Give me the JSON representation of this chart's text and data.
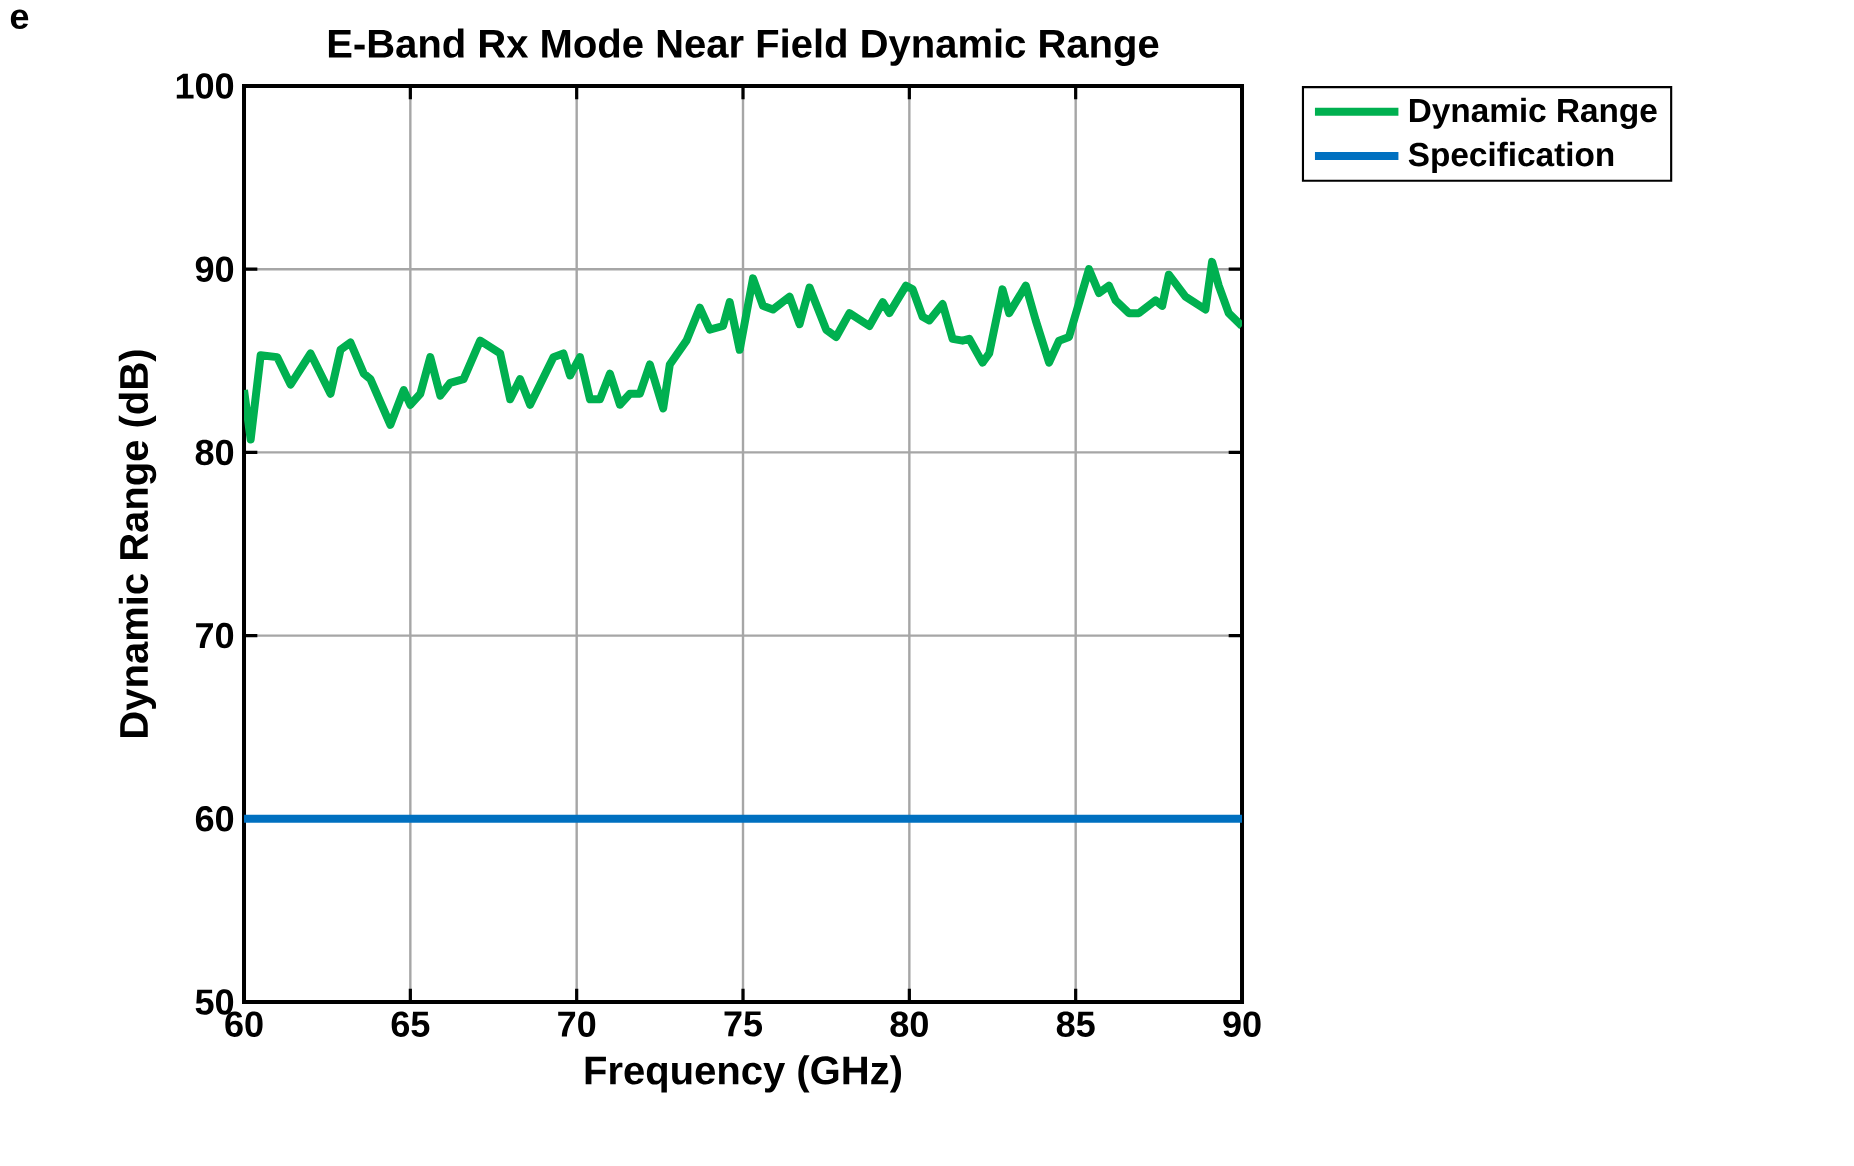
{
  "chart_data": {
    "type": "line",
    "title": "E-Band Rx Mode Near Field Dynamic Range",
    "xlabel": "Frequency (GHz)",
    "ylabel": "Dynamic Range (dB)",
    "annotations": [
      "e"
    ],
    "xlim": [
      60,
      90
    ],
    "ylim": [
      50,
      100
    ],
    "xticks": [
      60,
      65,
      70,
      75,
      80,
      85,
      90
    ],
    "yticks": [
      50,
      60,
      70,
      80,
      90,
      100
    ],
    "grid": true,
    "legend": "right",
    "line_style": "solid",
    "marker": "none",
    "series": [
      {
        "name": "Dynamic Range",
        "color": "#00b050",
        "x": [
          60,
          60.2,
          60.5,
          61.0,
          61.4,
          62.0,
          62.6,
          62.9,
          63.2,
          63.6,
          63.8,
          64.4,
          64.8,
          65.0,
          65.3,
          65.6,
          65.9,
          66.2,
          66.6,
          67.1,
          67.7,
          68.0,
          68.3,
          68.6,
          69.3,
          69.6,
          69.8,
          70.1,
          70.4,
          70.7,
          71.0,
          71.3,
          71.6,
          71.9,
          72.2,
          72.6,
          72.8,
          73.3,
          73.7,
          74.0,
          74.4,
          74.6,
          74.9,
          75.3,
          75.6,
          75.9,
          76.4,
          76.7,
          77.0,
          77.5,
          77.8,
          78.2,
          78.8,
          79.2,
          79.4,
          79.9,
          80.1,
          80.4,
          80.6,
          81.0,
          81.3,
          81.6,
          81.8,
          82.2,
          82.4,
          82.8,
          83.0,
          83.5,
          83.8,
          84.2,
          84.5,
          84.8,
          85.4,
          85.7,
          86.0,
          86.2,
          86.6,
          86.9,
          87.4,
          87.6,
          87.8,
          88.3,
          88.9,
          89.1,
          89.3,
          89.6,
          90.0
        ],
        "values": [
          83.4,
          80.7,
          85.3,
          85.2,
          83.7,
          85.4,
          83.2,
          85.6,
          86.0,
          84.3,
          84.0,
          81.5,
          83.4,
          82.6,
          83.2,
          85.2,
          83.1,
          83.8,
          84.0,
          86.1,
          85.4,
          82.9,
          84.0,
          82.6,
          85.2,
          85.4,
          84.2,
          85.2,
          82.9,
          82.9,
          84.3,
          82.6,
          83.2,
          83.2,
          84.8,
          82.4,
          84.8,
          86.1,
          87.9,
          86.7,
          86.9,
          88.2,
          85.6,
          89.5,
          88.0,
          87.8,
          88.5,
          87.0,
          89.0,
          86.7,
          86.3,
          87.6,
          86.9,
          88.2,
          87.6,
          89.1,
          88.9,
          87.4,
          87.2,
          88.1,
          86.2,
          86.1,
          86.2,
          84.9,
          85.4,
          88.9,
          87.6,
          89.1,
          87.2,
          84.9,
          86.1,
          86.3,
          90.0,
          88.7,
          89.1,
          88.3,
          87.6,
          87.6,
          88.3,
          88.0,
          89.7,
          88.5,
          87.8,
          90.4,
          89.1,
          87.6,
          86.9
        ]
      },
      {
        "name": "Specification",
        "color": "#0070c0",
        "x": [
          60,
          90
        ],
        "values": [
          60,
          60
        ]
      }
    ]
  }
}
